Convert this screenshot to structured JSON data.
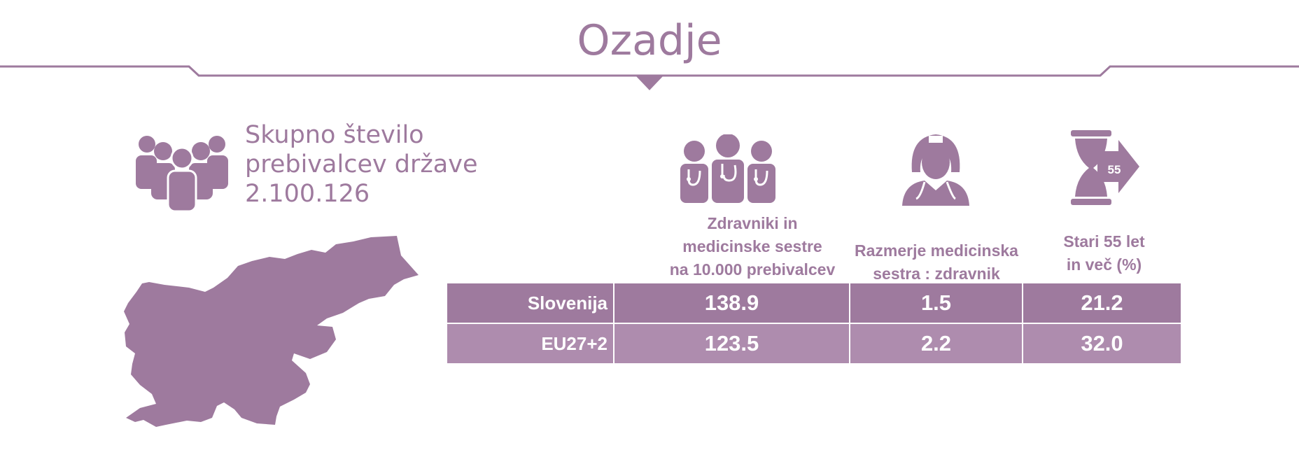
{
  "header": {
    "title": "Ozadje"
  },
  "population": {
    "label_line1": "Skupno število",
    "label_line2": "prebivalcev države",
    "value": "2.100.126"
  },
  "columns": [
    {
      "line1": "Zdravniki in",
      "line2": "medicinske sestre",
      "line3": "na 10.000 prebivalcev",
      "icon": "doctors-group-icon"
    },
    {
      "line1": "Razmerje medicinska",
      "line2": "sestra : zdravnik",
      "icon": "nurse-icon"
    },
    {
      "line1": "Stari 55 let",
      "line2": "in več (%)",
      "icon": "hourglass-55-icon",
      "icon_text": "55"
    }
  ],
  "rows": [
    {
      "label": "Slovenija",
      "values": [
        "138.9",
        "1.5",
        "21.2"
      ]
    },
    {
      "label": "EU27+2",
      "values": [
        "123.5",
        "2.2",
        "32.0"
      ]
    }
  ],
  "colors": {
    "accent": "#9e7a9e",
    "row1": "#9e7a9e",
    "row2": "#ae8cae"
  }
}
